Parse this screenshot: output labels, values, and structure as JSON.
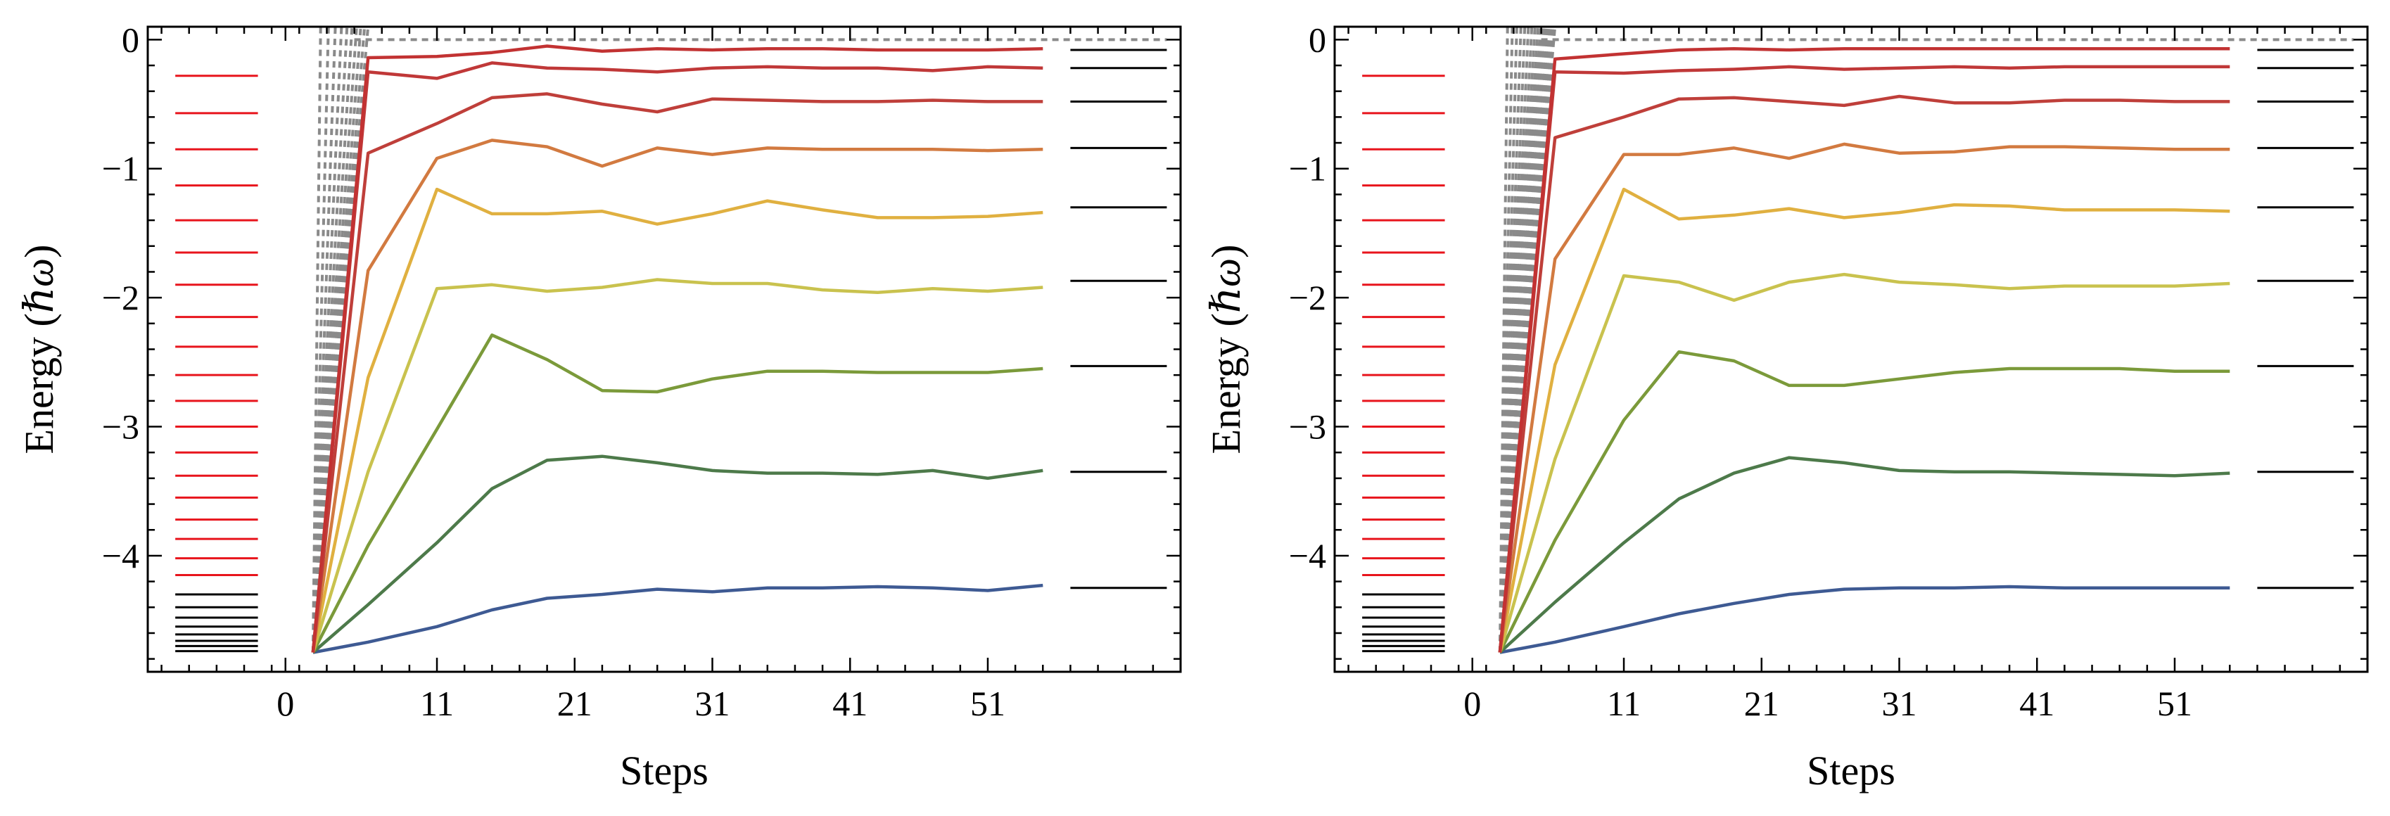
{
  "chart_data": [
    {
      "type": "line",
      "panel": "left",
      "xlabel": "Steps",
      "ylabel_main": "Energy (",
      "ylabel_unit": "ℏω",
      "ylabel_close": ")",
      "xticks": [
        0,
        11,
        21,
        31,
        41,
        51
      ],
      "yticks": [
        0,
        -1,
        -2,
        -3,
        -4
      ],
      "xlim": [
        -10,
        65
      ],
      "ylim": [
        -4.9,
        0.1
      ],
      "ground_state": -4.75,
      "initial_levels": {
        "x_range": [
          -8,
          -2
        ],
        "red": [
          -0.28,
          -0.57,
          -0.85,
          -1.13,
          -1.4,
          -1.65,
          -1.9,
          -2.15,
          -2.38,
          -2.6,
          -2.8,
          -3.0,
          -3.2,
          -3.38,
          -3.55,
          -3.72,
          -3.87,
          -4.02,
          -4.15
        ],
        "black": [
          -4.3,
          -4.4,
          -4.48,
          -4.55,
          -4.61,
          -4.66,
          -4.7,
          -4.74
        ]
      },
      "target_levels": {
        "x_range": [
          57,
          64
        ],
        "values": [
          -0.08,
          -0.22,
          -0.48,
          -0.84,
          -1.3,
          -1.87,
          -2.53,
          -3.35,
          -4.25
        ]
      },
      "gray_series_count": 10,
      "series": [
        {
          "name": "level-1",
          "color": "#3e5a93",
          "x": [
            2,
            6,
            11,
            15,
            19,
            23,
            27,
            31,
            35,
            39,
            43,
            47,
            51,
            55
          ],
          "values": [
            -4.75,
            -4.67,
            -4.55,
            -4.42,
            -4.33,
            -4.3,
            -4.26,
            -4.28,
            -4.25,
            -4.25,
            -4.24,
            -4.25,
            -4.27,
            -4.23
          ]
        },
        {
          "name": "level-2",
          "color": "#4d7a4a",
          "x": [
            2,
            6,
            11,
            15,
            19,
            23,
            27,
            31,
            35,
            39,
            43,
            47,
            51,
            55
          ],
          "values": [
            -4.75,
            -4.38,
            -3.9,
            -3.48,
            -3.26,
            -3.23,
            -3.28,
            -3.34,
            -3.36,
            -3.36,
            -3.37,
            -3.34,
            -3.4,
            -3.34
          ]
        },
        {
          "name": "level-3",
          "color": "#7b9a3a",
          "x": [
            2,
            6,
            11,
            15,
            19,
            23,
            27,
            31,
            35,
            39,
            43,
            47,
            51,
            55
          ],
          "values": [
            -4.75,
            -3.92,
            -3.02,
            -2.29,
            -2.48,
            -2.72,
            -2.73,
            -2.63,
            -2.57,
            -2.57,
            -2.58,
            -2.58,
            -2.58,
            -2.55
          ]
        },
        {
          "name": "level-4",
          "color": "#c9c24e",
          "x": [
            2,
            6,
            11,
            15,
            19,
            23,
            27,
            31,
            35,
            39,
            43,
            47,
            51,
            55
          ],
          "values": [
            -4.75,
            -3.35,
            -1.93,
            -1.9,
            -1.95,
            -1.92,
            -1.86,
            -1.89,
            -1.89,
            -1.94,
            -1.96,
            -1.93,
            -1.95,
            -1.92
          ]
        },
        {
          "name": "level-5",
          "color": "#e0b040",
          "x": [
            2,
            6,
            11,
            15,
            19,
            23,
            27,
            31,
            35,
            39,
            43,
            47,
            51,
            55
          ],
          "values": [
            -4.75,
            -2.62,
            -1.16,
            -1.35,
            -1.35,
            -1.33,
            -1.43,
            -1.35,
            -1.25,
            -1.32,
            -1.38,
            -1.38,
            -1.37,
            -1.34
          ]
        },
        {
          "name": "level-6",
          "color": "#d27a40",
          "x": [
            2,
            6,
            11,
            15,
            19,
            23,
            27,
            31,
            35,
            39,
            43,
            47,
            51,
            55
          ],
          "values": [
            -4.75,
            -1.79,
            -0.92,
            -0.78,
            -0.83,
            -0.98,
            -0.84,
            -0.89,
            -0.84,
            -0.85,
            -0.85,
            -0.85,
            -0.86,
            -0.85
          ]
        },
        {
          "name": "level-7",
          "color": "#bf3f3a",
          "x": [
            2,
            6,
            11,
            15,
            19,
            23,
            27,
            31,
            35,
            39,
            43,
            47,
            51,
            55
          ],
          "values": [
            -4.75,
            -0.88,
            -0.65,
            -0.45,
            -0.42,
            -0.5,
            -0.56,
            -0.46,
            -0.47,
            -0.48,
            -0.48,
            -0.47,
            -0.48,
            -0.48
          ]
        },
        {
          "name": "level-8",
          "color": "#c03838",
          "x": [
            2,
            6,
            11,
            15,
            19,
            23,
            27,
            31,
            35,
            39,
            43,
            47,
            51,
            55
          ],
          "values": [
            -4.75,
            -0.25,
            -0.3,
            -0.18,
            -0.22,
            -0.23,
            -0.25,
            -0.22,
            -0.21,
            -0.22,
            -0.22,
            -0.24,
            -0.21,
            -0.22
          ]
        },
        {
          "name": "level-9",
          "color": "#c23232",
          "x": [
            2,
            6,
            11,
            15,
            19,
            23,
            27,
            31,
            35,
            39,
            43,
            47,
            51,
            55
          ],
          "values": [
            -4.75,
            -0.14,
            -0.13,
            -0.1,
            -0.05,
            -0.09,
            -0.07,
            -0.08,
            -0.07,
            -0.07,
            -0.08,
            -0.08,
            -0.08,
            -0.07
          ]
        }
      ]
    },
    {
      "type": "line",
      "panel": "right",
      "xlabel": "Steps",
      "ylabel_main": "Energy (",
      "ylabel_unit": "ℏω",
      "ylabel_close": ")",
      "xticks": [
        0,
        11,
        21,
        31,
        41,
        51
      ],
      "yticks": [
        0,
        -1,
        -2,
        -3,
        -4
      ],
      "xlim": [
        -10,
        65
      ],
      "ylim": [
        -4.9,
        0.1
      ],
      "ground_state": -4.75,
      "initial_levels": {
        "x_range": [
          -8,
          -2
        ],
        "red": [
          -0.28,
          -0.57,
          -0.85,
          -1.13,
          -1.4,
          -1.65,
          -1.9,
          -2.15,
          -2.38,
          -2.6,
          -2.8,
          -3.0,
          -3.2,
          -3.38,
          -3.55,
          -3.72,
          -3.87,
          -4.02,
          -4.15
        ],
        "black": [
          -4.3,
          -4.4,
          -4.48,
          -4.55,
          -4.61,
          -4.66,
          -4.7,
          -4.74
        ]
      },
      "target_levels": {
        "x_range": [
          57,
          64
        ],
        "values": [
          -0.08,
          -0.22,
          -0.48,
          -0.84,
          -1.3,
          -1.87,
          -2.53,
          -3.35,
          -4.25
        ]
      },
      "gray_series_count": 16,
      "series": [
        {
          "name": "level-1",
          "color": "#3e5a93",
          "x": [
            2,
            6,
            11,
            15,
            19,
            23,
            27,
            31,
            35,
            39,
            43,
            47,
            51,
            55
          ],
          "values": [
            -4.75,
            -4.67,
            -4.55,
            -4.45,
            -4.37,
            -4.3,
            -4.26,
            -4.25,
            -4.25,
            -4.24,
            -4.25,
            -4.25,
            -4.25,
            -4.25
          ]
        },
        {
          "name": "level-2",
          "color": "#4d7a4a",
          "x": [
            2,
            6,
            11,
            15,
            19,
            23,
            27,
            31,
            35,
            39,
            43,
            47,
            51,
            55
          ],
          "values": [
            -4.75,
            -4.36,
            -3.9,
            -3.56,
            -3.36,
            -3.24,
            -3.28,
            -3.34,
            -3.35,
            -3.35,
            -3.36,
            -3.37,
            -3.38,
            -3.36
          ]
        },
        {
          "name": "level-3",
          "color": "#7b9a3a",
          "x": [
            2,
            6,
            11,
            15,
            19,
            23,
            27,
            31,
            35,
            39,
            43,
            47,
            51,
            55
          ],
          "values": [
            -4.75,
            -3.88,
            -2.95,
            -2.42,
            -2.49,
            -2.68,
            -2.68,
            -2.63,
            -2.58,
            -2.55,
            -2.55,
            -2.55,
            -2.57,
            -2.57
          ]
        },
        {
          "name": "level-4",
          "color": "#c9c24e",
          "x": [
            2,
            6,
            11,
            15,
            19,
            23,
            27,
            31,
            35,
            39,
            43,
            47,
            51,
            55
          ],
          "values": [
            -4.75,
            -3.25,
            -1.83,
            -1.88,
            -2.02,
            -1.88,
            -1.82,
            -1.88,
            -1.9,
            -1.93,
            -1.91,
            -1.91,
            -1.91,
            -1.89
          ]
        },
        {
          "name": "level-5",
          "color": "#e0b040",
          "x": [
            2,
            6,
            11,
            15,
            19,
            23,
            27,
            31,
            35,
            39,
            43,
            47,
            51,
            55
          ],
          "values": [
            -4.75,
            -2.52,
            -1.16,
            -1.39,
            -1.36,
            -1.31,
            -1.38,
            -1.34,
            -1.28,
            -1.29,
            -1.32,
            -1.32,
            -1.32,
            -1.33
          ]
        },
        {
          "name": "level-6",
          "color": "#d27a40",
          "x": [
            2,
            6,
            11,
            15,
            19,
            23,
            27,
            31,
            35,
            39,
            43,
            47,
            51,
            55
          ],
          "values": [
            -4.75,
            -1.7,
            -0.89,
            -0.89,
            -0.84,
            -0.92,
            -0.81,
            -0.88,
            -0.87,
            -0.83,
            -0.83,
            -0.84,
            -0.85,
            -0.85
          ]
        },
        {
          "name": "level-7",
          "color": "#bf3f3a",
          "x": [
            2,
            6,
            11,
            15,
            19,
            23,
            27,
            31,
            35,
            39,
            43,
            47,
            51,
            55
          ],
          "values": [
            -4.75,
            -0.76,
            -0.6,
            -0.46,
            -0.45,
            -0.48,
            -0.51,
            -0.44,
            -0.49,
            -0.49,
            -0.47,
            -0.47,
            -0.48,
            -0.48
          ]
        },
        {
          "name": "level-8",
          "color": "#c03838",
          "x": [
            2,
            6,
            11,
            15,
            19,
            23,
            27,
            31,
            35,
            39,
            43,
            47,
            51,
            55
          ],
          "values": [
            -4.75,
            -0.25,
            -0.26,
            -0.24,
            -0.23,
            -0.21,
            -0.23,
            -0.22,
            -0.21,
            -0.22,
            -0.21,
            -0.21,
            -0.21,
            -0.21
          ]
        },
        {
          "name": "level-9",
          "color": "#c23232",
          "x": [
            2,
            6,
            11,
            15,
            19,
            23,
            27,
            31,
            35,
            39,
            43,
            47,
            51,
            55
          ],
          "values": [
            -4.75,
            -0.15,
            -0.11,
            -0.08,
            -0.07,
            -0.08,
            -0.07,
            -0.07,
            -0.07,
            -0.07,
            -0.07,
            -0.07,
            -0.07,
            -0.07
          ]
        }
      ]
    }
  ]
}
